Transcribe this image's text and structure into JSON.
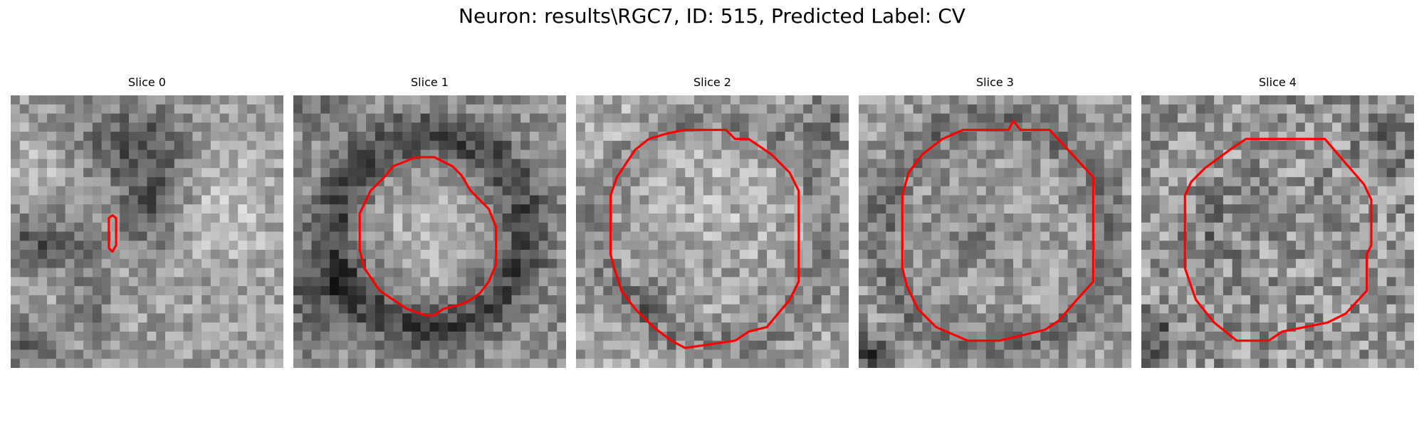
{
  "figure": {
    "title": "Neuron: results\\RGC7, ID: 515, Predicted Label: CV"
  },
  "panels": [
    {
      "title": "Slice 0"
    },
    {
      "title": "Slice 1"
    },
    {
      "title": "Slice 2"
    },
    {
      "title": "Slice 3"
    },
    {
      "title": "Slice 4"
    }
  ],
  "colors": {
    "contour": "#ff0000",
    "colormap": "grayscale"
  }
}
